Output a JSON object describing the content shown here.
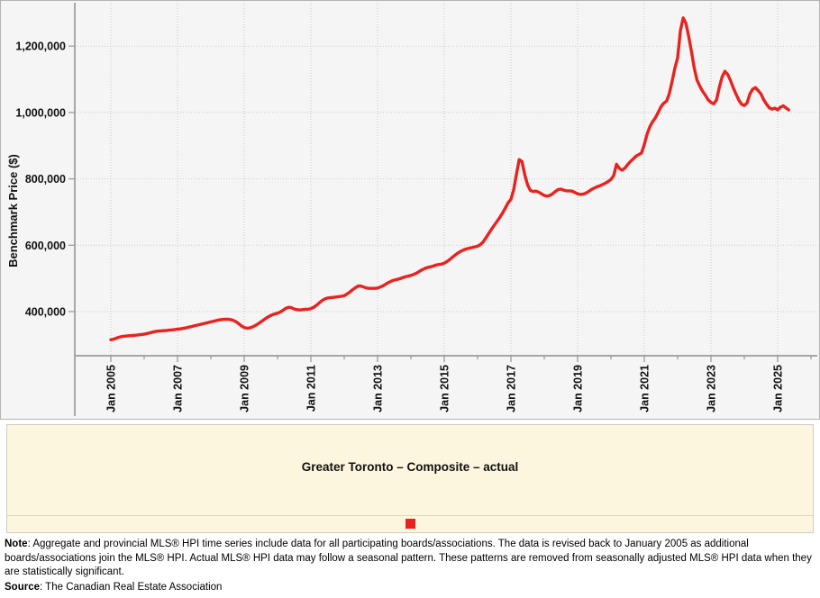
{
  "legend": {
    "title": "Greater Toronto – Composite – actual",
    "marker_color": "#e8231f"
  },
  "footnote": {
    "note_label": "Note",
    "note_text": ": Aggregate and provincial MLS® HPI time series include data for all participating boards/associations. The data is revised back to January 2005 as additional boards/associations join the MLS® HPI. Actual MLS® HPI data may follow a seasonal pattern. These patterns are removed from seasonally adjusted MLS® HPI data when they are statistically significant.",
    "source_label": "Source",
    "source_text": ": The Canadian Real Estate Association"
  },
  "chart_data": {
    "type": "line",
    "title": "",
    "xlabel": "",
    "ylabel": "Benchmark Price ($)",
    "ylim": [
      264000,
      1328000
    ],
    "grid": "dotted",
    "legend_position": "bottom-box",
    "x_start": "Jan 2005",
    "x_end": "May 2025",
    "frequency": "monthly",
    "y_ticks": [
      {
        "label": "400,000",
        "value": 400000
      },
      {
        "label": "600,000",
        "value": 600000
      },
      {
        "label": "800,000",
        "value": 800000
      },
      {
        "label": "1,000,000",
        "value": 1000000
      },
      {
        "label": "1,200,000",
        "value": 1200000
      }
    ],
    "x_ticks_major": [
      {
        "label": "Jan 2005",
        "month_index": 0
      },
      {
        "label": "Jan 2007",
        "month_index": 24
      },
      {
        "label": "Jan 2009",
        "month_index": 48
      },
      {
        "label": "Jan 2011",
        "month_index": 72
      },
      {
        "label": "Jan 2013",
        "month_index": 96
      },
      {
        "label": "Jan 2015",
        "month_index": 120
      },
      {
        "label": "Jan 2017",
        "month_index": 144
      },
      {
        "label": "Jan 2019",
        "month_index": 168
      },
      {
        "label": "Jan 2021",
        "month_index": 192
      },
      {
        "label": "Jan 2023",
        "month_index": 216
      },
      {
        "label": "Jan 2025",
        "month_index": 240
      }
    ],
    "x_ticks_minor_month_indices": [
      12,
      36,
      60,
      84,
      108,
      132,
      156,
      180,
      204,
      228,
      252
    ],
    "series": [
      {
        "name": "Greater Toronto – Composite – actual",
        "color": "#e8231f",
        "start": "2005-01",
        "values": [
          315000,
          317000,
          320000,
          323000,
          325000,
          326000,
          327000,
          327500,
          328000,
          329000,
          330000,
          331000,
          332000,
          334000,
          336000,
          338000,
          340000,
          341000,
          342000,
          342500,
          343000,
          344000,
          345000,
          346000,
          347000,
          348000,
          349500,
          351000,
          353000,
          355000,
          357000,
          359000,
          361000,
          363000,
          365000,
          367000,
          369000,
          371000,
          373000,
          375000,
          376000,
          377000,
          377000,
          376000,
          374000,
          370000,
          364000,
          357000,
          352000,
          350000,
          351000,
          354000,
          358000,
          363000,
          369000,
          375000,
          381000,
          386000,
          390000,
          393000,
          395000,
          399000,
          404000,
          410000,
          413000,
          412000,
          408000,
          406000,
          405000,
          406000,
          407000,
          407000,
          409000,
          413000,
          419000,
          426000,
          433000,
          438000,
          441000,
          442000,
          443000,
          444000,
          445000,
          446000,
          448000,
          453000,
          459000,
          466000,
          472000,
          477000,
          477000,
          474000,
          471000,
          470000,
          470000,
          470000,
          471000,
          474000,
          478000,
          483000,
          488000,
          492000,
          495000,
          497000,
          499000,
          502000,
          505000,
          507000,
          509000,
          512000,
          516000,
          521000,
          526000,
          530000,
          533000,
          535000,
          537000,
          540000,
          542000,
          543000,
          546000,
          551000,
          557000,
          564000,
          571000,
          577000,
          582000,
          586000,
          589000,
          591000,
          593000,
          595000,
          597000,
          602000,
          610000,
          622000,
          635000,
          648000,
          660000,
          672000,
          684000,
          697000,
          712000,
          728000,
          738000,
          768000,
          815000,
          858000,
          852000,
          812000,
          782000,
          765000,
          762000,
          763000,
          760000,
          755000,
          750000,
          748000,
          750000,
          755000,
          762000,
          768000,
          769000,
          766000,
          764000,
          764000,
          763000,
          759000,
          755000,
          753000,
          754000,
          757000,
          762000,
          768000,
          772000,
          776000,
          779000,
          783000,
          787000,
          792000,
          798000,
          810000,
          844000,
          832000,
          826000,
          832000,
          843000,
          852000,
          860000,
          868000,
          873000,
          878000,
          903000,
          935000,
          957000,
          972000,
          984000,
          1000000,
          1017000,
          1028000,
          1034000,
          1056000,
          1093000,
          1133000,
          1165000,
          1247000,
          1285000,
          1269000,
          1229000,
          1183000,
          1133000,
          1097000,
          1079000,
          1064000,
          1052000,
          1038000,
          1030000,
          1026000,
          1038000,
          1075000,
          1107000,
          1124000,
          1115000,
          1097000,
          1075000,
          1056000,
          1038000,
          1025000,
          1021000,
          1029000,
          1056000,
          1070000,
          1075000,
          1066000,
          1056000,
          1038000,
          1025000,
          1014000,
          1010000,
          1013000,
          1008000,
          1016000,
          1020000,
          1014000,
          1008000
        ]
      }
    ]
  }
}
